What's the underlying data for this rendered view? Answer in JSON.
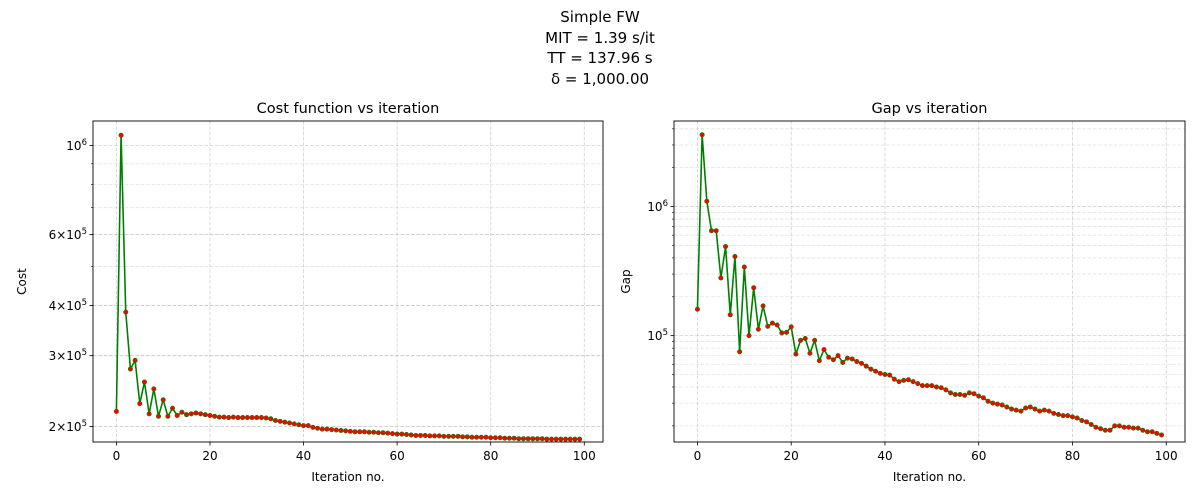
{
  "figure": {
    "suptitle_lines": [
      "Simple FW",
      "MIT = 1.39 s/it",
      "TT = 137.96 s",
      "δ = 1,000.00"
    ]
  },
  "chart_data": [
    {
      "type": "line",
      "title": "Cost function vs iteration",
      "xlabel": "Iteration no.",
      "ylabel": "Cost",
      "yscale": "log",
      "xlim": [
        -5,
        104
      ],
      "ylim": [
        183000,
        1150000
      ],
      "xticks": [
        0,
        20,
        40,
        60,
        80,
        100
      ],
      "yticks": [
        {
          "value": 200000,
          "mant": "2",
          "exp": "5"
        },
        {
          "value": 300000,
          "mant": "3",
          "exp": "5"
        },
        {
          "value": 400000,
          "mant": "4",
          "exp": "5"
        },
        {
          "value": 600000,
          "mant": "6",
          "exp": "5"
        },
        {
          "value": 1000000,
          "mant": "",
          "exp": "6"
        }
      ],
      "grid": true,
      "line_color": "#008000",
      "marker_color": "#ff0000",
      "x": [
        0,
        1,
        2,
        3,
        4,
        5,
        6,
        7,
        8,
        9,
        10,
        11,
        12,
        13,
        14,
        15,
        16,
        17,
        18,
        19,
        20,
        21,
        22,
        23,
        24,
        25,
        26,
        27,
        28,
        29,
        30,
        31,
        32,
        33,
        34,
        35,
        36,
        37,
        38,
        39,
        40,
        41,
        42,
        43,
        44,
        45,
        46,
        47,
        48,
        49,
        50,
        51,
        52,
        53,
        54,
        55,
        56,
        57,
        58,
        59,
        60,
        61,
        62,
        63,
        64,
        65,
        66,
        67,
        68,
        69,
        70,
        71,
        72,
        73,
        74,
        75,
        76,
        77,
        78,
        79,
        80,
        81,
        82,
        83,
        84,
        85,
        86,
        87,
        88,
        89,
        90,
        91,
        92,
        93,
        94,
        95,
        96,
        97,
        98,
        99
      ],
      "y": [
        218000,
        1060000,
        385000,
        278000,
        292000,
        228000,
        258000,
        215000,
        248000,
        212000,
        233000,
        212000,
        222000,
        213000,
        217000,
        214000,
        215000,
        216000,
        215000,
        214000,
        213000,
        212000,
        211000,
        211000,
        210500,
        211000,
        210500,
        210500,
        210500,
        210500,
        210500,
        210500,
        210000,
        209000,
        207000,
        206000,
        205000,
        204000,
        203000,
        202000,
        201000,
        201000,
        199000,
        198000,
        197000,
        197000,
        196500,
        196000,
        195500,
        195000,
        194500,
        194000,
        194000,
        194000,
        193500,
        193500,
        193000,
        193000,
        192500,
        192000,
        191500,
        191500,
        191000,
        190500,
        190000,
        190000,
        190000,
        189500,
        189500,
        189500,
        189000,
        189000,
        189000,
        189000,
        188500,
        188500,
        188000,
        188000,
        188000,
        188000,
        187500,
        187500,
        187500,
        187000,
        187000,
        187000,
        186500,
        186500,
        186500,
        186500,
        186500,
        186500,
        186000,
        186000,
        186000,
        186000,
        186000,
        186000,
        186000,
        186000
      ]
    },
    {
      "type": "line",
      "title": "Gap vs iteration",
      "xlabel": "Iteration no.",
      "ylabel": "Gap",
      "yscale": "log",
      "xlim": [
        -5,
        104
      ],
      "ylim": [
        15000,
        4600000
      ],
      "xticks": [
        0,
        20,
        40,
        60,
        80,
        100
      ],
      "yticks": [
        {
          "value": 100000,
          "mant": "",
          "exp": "5"
        },
        {
          "value": 1000000,
          "mant": "",
          "exp": "6"
        }
      ],
      "grid": true,
      "line_color": "#008000",
      "marker_color": "#ff0000",
      "x": [
        0,
        1,
        2,
        3,
        4,
        5,
        6,
        7,
        8,
        9,
        10,
        11,
        12,
        13,
        14,
        15,
        16,
        17,
        18,
        19,
        20,
        21,
        22,
        23,
        24,
        25,
        26,
        27,
        28,
        29,
        30,
        31,
        32,
        33,
        34,
        35,
        36,
        37,
        38,
        39,
        40,
        41,
        42,
        43,
        44,
        45,
        46,
        47,
        48,
        49,
        50,
        51,
        52,
        53,
        54,
        55,
        56,
        57,
        58,
        59,
        60,
        61,
        62,
        63,
        64,
        65,
        66,
        67,
        68,
        69,
        70,
        71,
        72,
        73,
        74,
        75,
        76,
        77,
        78,
        79,
        80,
        81,
        82,
        83,
        84,
        85,
        86,
        87,
        88,
        89,
        90,
        91,
        92,
        93,
        94,
        95,
        96,
        97,
        98,
        99
      ],
      "y": [
        160000,
        3600000,
        1100000,
        650000,
        650000,
        280000,
        490000,
        145000,
        410000,
        75000,
        340000,
        100000,
        235000,
        112000,
        170000,
        118000,
        125000,
        121000,
        105000,
        106000,
        117000,
        72000,
        92000,
        95000,
        73000,
        92000,
        64000,
        78000,
        68000,
        65000,
        70000,
        62000,
        67000,
        66000,
        63000,
        61000,
        58000,
        55000,
        53000,
        51000,
        50000,
        49500,
        46000,
        44000,
        45000,
        45500,
        44000,
        42500,
        41000,
        41000,
        41000,
        40000,
        39500,
        38000,
        36000,
        35000,
        35000,
        34500,
        36000,
        35500,
        34000,
        33000,
        31000,
        30000,
        29500,
        29000,
        28000,
        27000,
        26500,
        26000,
        27500,
        28000,
        27000,
        26000,
        26500,
        26000,
        25000,
        24500,
        24000,
        24000,
        23500,
        23000,
        22000,
        21500,
        20500,
        19500,
        19000,
        18500,
        18500,
        20000,
        20000,
        19500,
        19500,
        19200,
        19200,
        18500,
        18000,
        18000,
        17500,
        17000
      ]
    }
  ]
}
